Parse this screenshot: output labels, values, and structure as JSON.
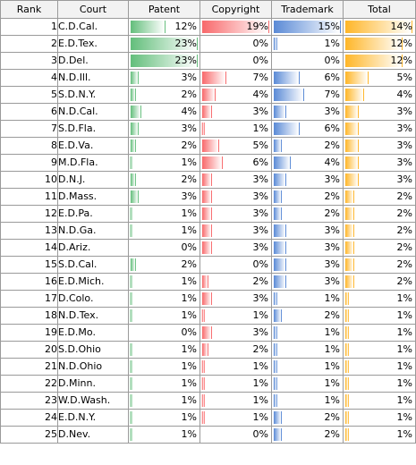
{
  "table": {
    "headers": {
      "rank": "Rank",
      "court": "Court",
      "patent": "Patent",
      "copyright": "Copyright",
      "trademark": "Trademark",
      "total": "Total"
    },
    "bar_colors": {
      "patent": "#63be7b",
      "copyright": "#f8696b",
      "trademark": "#5a8ad6",
      "total": "#ffb628"
    },
    "rows": [
      {
        "rank": "1",
        "court": "C.D.Cal.",
        "patent": "12%",
        "copyright": "19%",
        "trademark": "15%",
        "total": "14%"
      },
      {
        "rank": "2",
        "court": "E.D.Tex.",
        "patent": "23%",
        "copyright": "0%",
        "trademark": "1%",
        "total": "12%"
      },
      {
        "rank": "3",
        "court": "D.Del.",
        "patent": "23%",
        "copyright": "0%",
        "trademark": "0%",
        "total": "12%"
      },
      {
        "rank": "4",
        "court": "N.D.Ill.",
        "patent": "3%",
        "copyright": "7%",
        "trademark": "6%",
        "total": "5%"
      },
      {
        "rank": "5",
        "court": "S.D.N.Y.",
        "patent": "2%",
        "copyright": "4%",
        "trademark": "7%",
        "total": "4%"
      },
      {
        "rank": "6",
        "court": "N.D.Cal.",
        "patent": "4%",
        "copyright": "3%",
        "trademark": "3%",
        "total": "3%"
      },
      {
        "rank": "7",
        "court": "S.D.Fla.",
        "patent": "3%",
        "copyright": "1%",
        "trademark": "6%",
        "total": "3%"
      },
      {
        "rank": "8",
        "court": "E.D.Va.",
        "patent": "2%",
        "copyright": "5%",
        "trademark": "2%",
        "total": "3%"
      },
      {
        "rank": "9",
        "court": "M.D.Fla.",
        "patent": "1%",
        "copyright": "6%",
        "trademark": "4%",
        "total": "3%"
      },
      {
        "rank": "10",
        "court": "D.N.J.",
        "patent": "2%",
        "copyright": "3%",
        "trademark": "3%",
        "total": "3%"
      },
      {
        "rank": "11",
        "court": "D.Mass.",
        "patent": "3%",
        "copyright": "3%",
        "trademark": "2%",
        "total": "2%"
      },
      {
        "rank": "12",
        "court": "E.D.Pa.",
        "patent": "1%",
        "copyright": "3%",
        "trademark": "2%",
        "total": "2%"
      },
      {
        "rank": "13",
        "court": "N.D.Ga.",
        "patent": "1%",
        "copyright": "3%",
        "trademark": "3%",
        "total": "2%"
      },
      {
        "rank": "14",
        "court": "D.Ariz.",
        "patent": "0%",
        "copyright": "3%",
        "trademark": "3%",
        "total": "2%"
      },
      {
        "rank": "15",
        "court": "S.D.Cal.",
        "patent": "2%",
        "copyright": "0%",
        "trademark": "3%",
        "total": "2%"
      },
      {
        "rank": "16",
        "court": "E.D.Mich.",
        "patent": "1%",
        "copyright": "2%",
        "trademark": "3%",
        "total": "2%"
      },
      {
        "rank": "17",
        "court": "D.Colo.",
        "patent": "1%",
        "copyright": "3%",
        "trademark": "1%",
        "total": "1%"
      },
      {
        "rank": "18",
        "court": "N.D.Tex.",
        "patent": "1%",
        "copyright": "1%",
        "trademark": "2%",
        "total": "1%"
      },
      {
        "rank": "19",
        "court": "E.D.Mo.",
        "patent": "0%",
        "copyright": "3%",
        "trademark": "1%",
        "total": "1%"
      },
      {
        "rank": "20",
        "court": "S.D.Ohio",
        "patent": "1%",
        "copyright": "2%",
        "trademark": "1%",
        "total": "1%"
      },
      {
        "rank": "21",
        "court": "N.D.Ohio",
        "patent": "1%",
        "copyright": "1%",
        "trademark": "1%",
        "total": "1%"
      },
      {
        "rank": "22",
        "court": "D.Minn.",
        "patent": "1%",
        "copyright": "1%",
        "trademark": "1%",
        "total": "1%"
      },
      {
        "rank": "23",
        "court": "W.D.Wash.",
        "patent": "1%",
        "copyright": "1%",
        "trademark": "1%",
        "total": "1%"
      },
      {
        "rank": "24",
        "court": "E.D.N.Y.",
        "patent": "1%",
        "copyright": "1%",
        "trademark": "2%",
        "total": "1%"
      },
      {
        "rank": "25",
        "court": "D.Nev.",
        "patent": "1%",
        "copyright": "0%",
        "trademark": "2%",
        "total": "1%"
      }
    ]
  }
}
